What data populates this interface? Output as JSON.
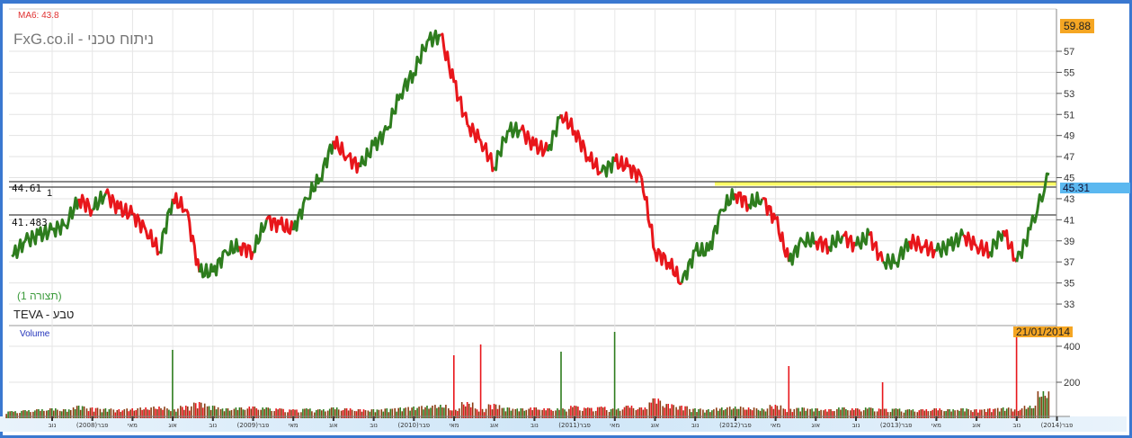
{
  "header": {
    "indicator": "MA6: 43.8",
    "brand": "FxG.co.il - ניתוח טכני"
  },
  "instrument": {
    "name": "TEVA - טבע",
    "view": "(תצורה 1)"
  },
  "levels": {
    "upper": "44.61",
    "upper_marker": "1",
    "lower": "41.483"
  },
  "badges": {
    "high": "59.88",
    "last": "45.31",
    "date": "21/01/2014"
  },
  "colors": {
    "up": "#2e7d1e",
    "down": "#e8161b",
    "frame": "#3a78d0",
    "high_badge": "#f5a623",
    "last_badge": "#5bb8f0",
    "support_line": "#ffff66"
  },
  "chart_data": [
    {
      "type": "line",
      "title": "",
      "yticks": [
        "33",
        "35",
        "37",
        "39",
        "41",
        "43",
        "45",
        "47",
        "49",
        "51",
        "53",
        "55",
        "57"
      ],
      "ylim": [
        31.5,
        61
      ],
      "grid": true,
      "x_tick_labels": [
        "נוב",
        "פבר(2008)",
        "מאי",
        "אוג",
        "נוב",
        "(2009)פבר",
        "מאי",
        "אוג",
        "נוב",
        "(2010)פבר",
        "מאי",
        "אוג",
        "נוב",
        "(2011)פבר",
        "מאי",
        "אוג",
        "נוב",
        "(2012)פבר",
        "מאי",
        "אוג",
        "נוב",
        "(2013)פבר",
        "מאי",
        "אוג",
        "נוב",
        "(2014)פבר"
      ],
      "x_tick_dates": [
        "2007-11",
        "2008-02",
        "2008-05",
        "2008-08",
        "2008-11",
        "2009-02",
        "2009-05",
        "2009-08",
        "2009-11",
        "2010-02",
        "2010-05",
        "2010-08",
        "2010-11",
        "2011-02",
        "2011-05",
        "2011-08",
        "2011-11",
        "2012-02",
        "2012-05",
        "2012-08",
        "2012-11",
        "2013-02",
        "2013-05",
        "2013-08",
        "2013-11",
        "2014-02"
      ],
      "x": [
        "2007-08",
        "2007-09",
        "2007-10",
        "2007-11",
        "2007-12",
        "2008-01",
        "2008-02",
        "2008-03",
        "2008-04",
        "2008-05",
        "2008-06",
        "2008-07",
        "2008-08",
        "2008-09",
        "2008-10",
        "2008-11",
        "2008-12",
        "2009-01",
        "2009-02",
        "2009-03",
        "2009-04",
        "2009-05",
        "2009-06",
        "2009-07",
        "2009-08",
        "2009-09",
        "2009-10",
        "2009-11",
        "2009-12",
        "2010-01",
        "2010-02",
        "2010-03",
        "2010-04",
        "2010-05",
        "2010-06",
        "2010-07",
        "2010-08",
        "2010-09",
        "2010-10",
        "2010-11",
        "2010-12",
        "2011-01",
        "2011-02",
        "2011-03",
        "2011-04",
        "2011-05",
        "2011-06",
        "2011-07",
        "2011-08",
        "2011-09",
        "2011-10",
        "2011-11",
        "2011-12",
        "2012-01",
        "2012-02",
        "2012-03",
        "2012-04",
        "2012-05",
        "2012-06",
        "2012-07",
        "2012-08",
        "2012-09",
        "2012-10",
        "2012-11",
        "2012-12",
        "2013-01",
        "2013-02",
        "2013-03",
        "2013-04",
        "2013-05",
        "2013-06",
        "2013-07",
        "2013-08",
        "2013-09",
        "2013-10",
        "2013-11",
        "2013-12",
        "2014-01"
      ],
      "close": [
        37.5,
        39,
        39.5,
        40,
        40.5,
        43,
        42,
        43.5,
        42,
        41.5,
        40,
        38,
        43,
        42,
        36,
        36,
        38,
        38.5,
        38,
        41,
        40.5,
        40,
        43,
        45,
        48.5,
        47,
        46,
        48,
        49.5,
        53,
        55,
        58,
        58.5,
        54,
        50,
        48.5,
        46,
        49.5,
        49.5,
        48,
        47.5,
        51,
        49.5,
        47,
        45.5,
        46.5,
        46,
        45,
        38,
        37,
        35,
        38,
        38,
        42,
        43.5,
        42.5,
        43,
        41,
        37,
        39,
        39,
        38.5,
        39.5,
        38.5,
        39.5,
        37,
        37,
        39,
        38.5,
        38,
        38.5,
        39.5,
        38.5,
        38,
        40,
        37,
        40,
        45.31
      ]
    },
    {
      "type": "bar",
      "title": "Volume",
      "yticks": [
        "200",
        "400"
      ],
      "ylim": [
        0,
        500
      ],
      "values": [
        40,
        45,
        50,
        55,
        50,
        70,
        60,
        55,
        50,
        55,
        60,
        65,
        380,
        70,
        90,
        70,
        55,
        60,
        65,
        60,
        55,
        50,
        55,
        50,
        60,
        55,
        50,
        50,
        55,
        60,
        65,
        70,
        75,
        350,
        90,
        410,
        80,
        60,
        55,
        60,
        55,
        370,
        70,
        60,
        65,
        480,
        70,
        60,
        110,
        80,
        70,
        55,
        50,
        60,
        65,
        60,
        55,
        75,
        290,
        60,
        55,
        50,
        60,
        55,
        60,
        200,
        55,
        50,
        50,
        55,
        50,
        55,
        50,
        55,
        60,
        470,
        70,
        150
      ]
    }
  ]
}
